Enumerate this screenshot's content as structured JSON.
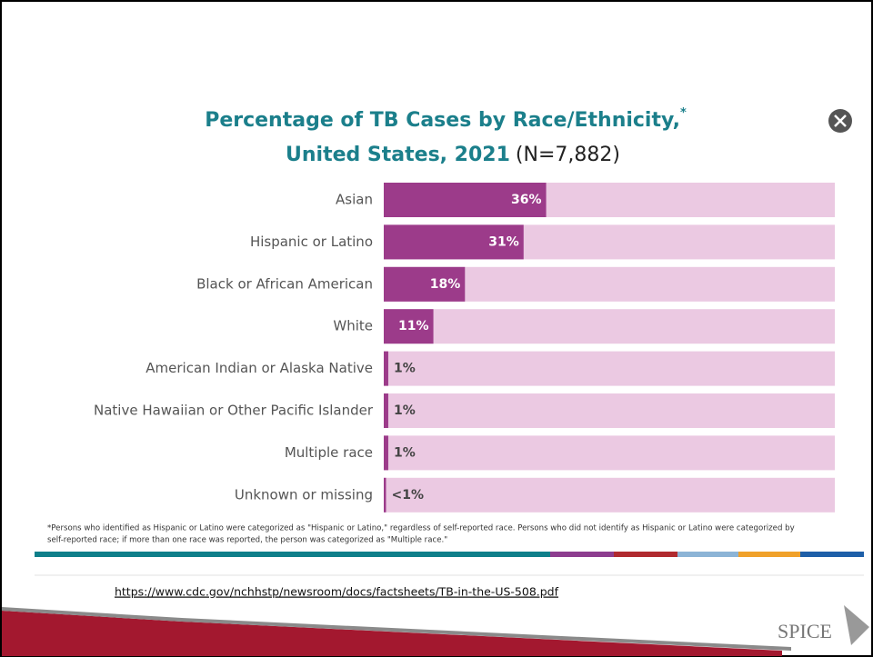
{
  "chart_data": {
    "type": "barh",
    "title": "Percentage of TB Cases by Race/Ethnicity,",
    "title_marker": "*",
    "title_line2": "United States, 2021",
    "subtitle": "(N=7,882)",
    "categories": [
      "Asian",
      "Hispanic or Latino",
      "Black or African American",
      "White",
      "American Indian or Alaska Native",
      "Native Hawaiian or Other Pacific Islander",
      "Multiple race",
      "Unknown or missing"
    ],
    "values": [
      36,
      31,
      18,
      11,
      1,
      1,
      1,
      0.5
    ],
    "value_labels": [
      "36%",
      "31%",
      "18%",
      "11%",
      "1%",
      "1%",
      "1%",
      "<1%"
    ],
    "color": "#9c3b8a",
    "background_color": "#ebc9e2",
    "xlim": [
      0,
      100
    ],
    "footnote": "*Persons who identified as Hispanic or Latino were categorized as \"Hispanic or Latino,\" regardless of self-reported race. Persons who did not identify as Hispanic or Latino were categorized by",
    "footnote_line2": "self-reported race; if more than one race was reported, the person was categorized as \"Multiple race.\"",
    "source_url": "https://www.cdc.gov/nchhstp/newsroom/docs/factsheets/TB-in-the-US-508.pdf",
    "logo": "SPICE"
  }
}
